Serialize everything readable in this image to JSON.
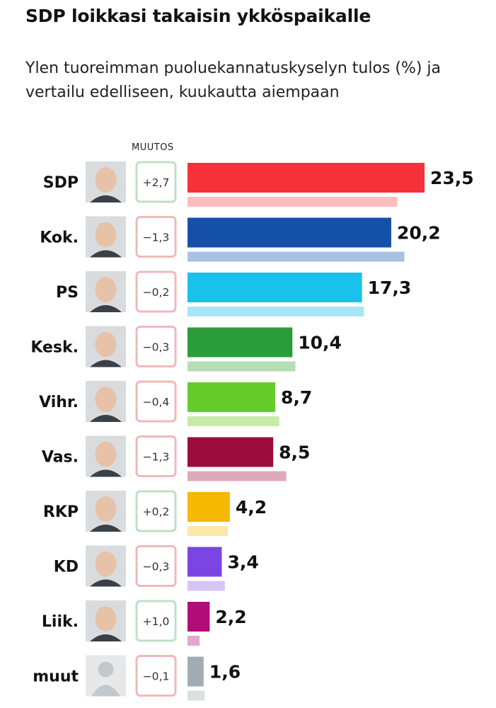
{
  "title": "SDP loikkasi takaisin ykköspaikalle",
  "subtitle": "Ylen tuoreimman puoluekannatuskyselyn tulos (%) ja vertailu edelliseen, kuukautta aiempaan",
  "change_header": "MUUTOS",
  "chart_data": {
    "type": "bar",
    "orientation": "horizontal",
    "title": "SDP loikkasi takaisin ykköspaikalle",
    "subtitle": "Ylen tuoreimman puoluekannatuskyselyn tulos (%) ja vertailu edelliseen, kuukautta aiempaan",
    "categories": [
      "SDP",
      "Kok.",
      "PS",
      "Kesk.",
      "Vihr.",
      "Vas.",
      "RKP",
      "KD",
      "Liik.",
      "muut"
    ],
    "values": [
      23.5,
      20.2,
      17.3,
      10.4,
      8.7,
      8.5,
      4.2,
      3.4,
      2.2,
      1.6
    ],
    "value_labels": [
      "23,5",
      "20,2",
      "17,3",
      "10,4",
      "8,7",
      "8,5",
      "4,2",
      "3,4",
      "2,2",
      "1,6"
    ],
    "previous_values": [
      20.8,
      21.5,
      17.5,
      10.7,
      9.1,
      9.8,
      4.0,
      3.7,
      1.2,
      1.7
    ],
    "changes": [
      "+2,7",
      "−1,3",
      "−0,2",
      "−0,3",
      "−0,4",
      "−1,3",
      "+0,2",
      "−0,3",
      "+1,0",
      "−0,1"
    ],
    "change_direction": [
      "up",
      "down",
      "down",
      "down",
      "down",
      "down",
      "up",
      "down",
      "up",
      "down"
    ],
    "colors": [
      "#f73139",
      "#1450a8",
      "#19c2ea",
      "#2a9c3a",
      "#66cc2c",
      "#9c0c3c",
      "#f6b800",
      "#7a45e3",
      "#b00d78",
      "#a3acb3"
    ],
    "previous_colors": [
      "#fdbcbc",
      "#a9c2e3",
      "#a8e6f6",
      "#b5deb7",
      "#c7ecaa",
      "#ddaabd",
      "#fbe8a7",
      "#d7c6f5",
      "#e3a7cf",
      "#dcdfe2"
    ],
    "change_up_color": "#bfe0c6",
    "change_down_color": "#f0b9bb",
    "icons": [
      "avatar-photo",
      "avatar-photo",
      "avatar-photo",
      "avatar-photo",
      "avatar-photo",
      "avatar-photo",
      "avatar-photo",
      "avatar-photo",
      "avatar-photo",
      "avatar-placeholder"
    ],
    "xlim": [
      0,
      25
    ],
    "grid": false,
    "legend": "none"
  }
}
